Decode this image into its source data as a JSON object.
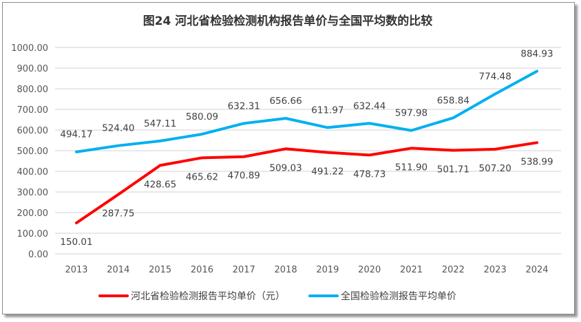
{
  "chart_data": {
    "type": "line",
    "title": "图24  河北省检验检测机构报告单价与全国平均数的比较",
    "categories": [
      "2013",
      "2014",
      "2015",
      "2016",
      "2017",
      "2018",
      "2019",
      "2020",
      "2021",
      "2022",
      "2023",
      "2024"
    ],
    "ylim": [
      0,
      1000
    ],
    "yticks": [
      "0.00",
      "100.00",
      "200.00",
      "300.00",
      "400.00",
      "500.00",
      "600.00",
      "700.00",
      "800.00",
      "900.00",
      "1000.00"
    ],
    "grid": true,
    "legend_position": "bottom",
    "series": [
      {
        "name": "河北省检验检测报告平均单价（元）",
        "color": "#ff0000",
        "label_pos": "below",
        "values": [
          150.01,
          287.75,
          428.65,
          465.62,
          470.89,
          509.03,
          491.22,
          478.73,
          511.9,
          501.71,
          507.2,
          538.99
        ]
      },
      {
        "name": "全国检验检测报告平均单价",
        "color": "#00b0f0",
        "label_pos": "above",
        "values": [
          494.17,
          524.4,
          547.11,
          580.09,
          632.31,
          656.66,
          611.97,
          632.44,
          597.98,
          658.84,
          774.48,
          884.93
        ]
      }
    ]
  }
}
